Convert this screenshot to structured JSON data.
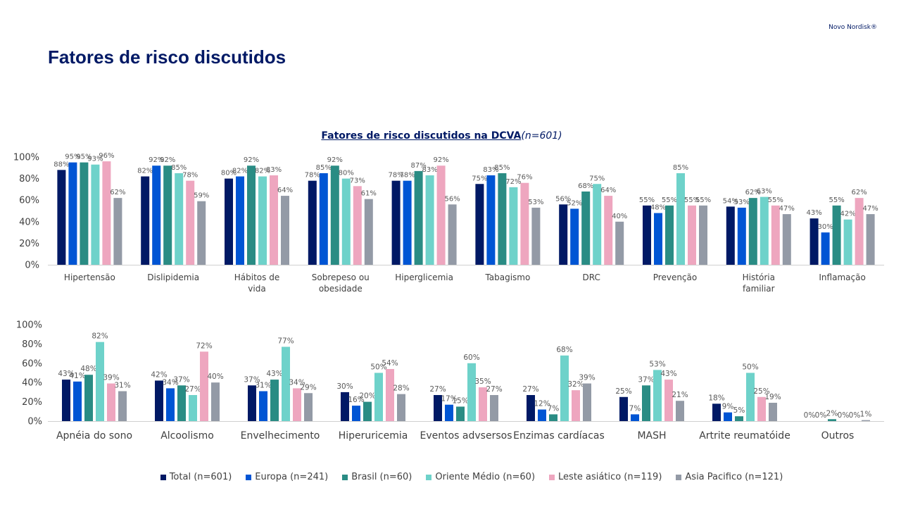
{
  "brand": "Novo Nordisk®",
  "title": "Fatores de risco discutidos",
  "subtitle": {
    "main": "Fatores de risco discutidos na DCVA",
    "n": "(n=601)"
  },
  "series_colors": [
    "#001965",
    "#0055d4",
    "#2a8c84",
    "#6ed2ca",
    "#eea6bf",
    "#939aa6"
  ],
  "chart_data": [
    {
      "type": "bar",
      "title": "Fatores de risco discutidos na DCVA(n=601)",
      "ylim": [
        0,
        100
      ],
      "yticks": [
        "0%",
        "20%",
        "40%",
        "60%",
        "80%",
        "100%"
      ],
      "categories": [
        "Hipertensão",
        "Dislipidemia",
        "Hábitos de vida",
        "Sobrepeso ou obesidade",
        "Hiperglicemia",
        "Tabagismo",
        "DRC",
        "Prevenção",
        "História familiar",
        "Inflamação"
      ],
      "series": [
        {
          "name": "Total (n=601)",
          "values": [
            88,
            82,
            80,
            78,
            78,
            75,
            56,
            55,
            54,
            43
          ]
        },
        {
          "name": "Europa (n=241)",
          "values": [
            95,
            92,
            82,
            85,
            78,
            83,
            52,
            48,
            53,
            30
          ]
        },
        {
          "name": "Brasil (n=60)",
          "values": [
            95,
            92,
            92,
            92,
            87,
            85,
            68,
            55,
            62,
            55
          ]
        },
        {
          "name": "Oriente Médio (n=60)",
          "values": [
            93,
            85,
            82,
            80,
            83,
            72,
            75,
            85,
            63,
            42
          ]
        },
        {
          "name": "Leste asiático (n=119)",
          "values": [
            96,
            78,
            83,
            73,
            92,
            76,
            64,
            55,
            55,
            62
          ]
        },
        {
          "name": "Asia Pacifico (n=121)",
          "values": [
            62,
            59,
            64,
            61,
            56,
            53,
            40,
            55,
            47,
            47
          ]
        }
      ]
    },
    {
      "type": "bar",
      "ylim": [
        0,
        100
      ],
      "yticks": [
        "0%",
        "20%",
        "40%",
        "60%",
        "80%",
        "100%"
      ],
      "categories": [
        "Apnéia do sono",
        "Alcoolismo",
        "Envelhecimento",
        "Hiperuricemia",
        "Eventos advsersos",
        "Enzimas cardíacas",
        "MASH",
        "Artrite reumatóide",
        "Outros"
      ],
      "series": [
        {
          "name": "Total (n=601)",
          "values": [
            43,
            42,
            37,
            30,
            27,
            27,
            25,
            18,
            0
          ]
        },
        {
          "name": "Europa (n=241)",
          "values": [
            41,
            34,
            31,
            16,
            17,
            12,
            7,
            9,
            0
          ]
        },
        {
          "name": "Brasil (n=60)",
          "values": [
            48,
            37,
            43,
            20,
            15,
            7,
            37,
            5,
            2
          ]
        },
        {
          "name": "Oriente Médio (n=60)",
          "values": [
            82,
            27,
            77,
            50,
            60,
            68,
            53,
            50,
            0
          ]
        },
        {
          "name": "Leste asiático (n=119)",
          "values": [
            39,
            72,
            34,
            54,
            35,
            32,
            43,
            25,
            0
          ]
        },
        {
          "name": "Asia Pacifico (n=121)",
          "values": [
            31,
            40,
            29,
            28,
            27,
            39,
            21,
            19,
            1
          ]
        }
      ]
    }
  ],
  "legend": [
    {
      "label": "Total (n=601)",
      "color": "#001965"
    },
    {
      "label": "Europa (n=241)",
      "color": "#0055d4"
    },
    {
      "label": "Brasil (n=60)",
      "color": "#2a8c84"
    },
    {
      "label": "Oriente Médio (n=60)",
      "color": "#6ed2ca"
    },
    {
      "label": "Leste asiático (n=119)",
      "color": "#eea6bf"
    },
    {
      "label": "Asia Pacifico (n=121)",
      "color": "#939aa6"
    }
  ]
}
